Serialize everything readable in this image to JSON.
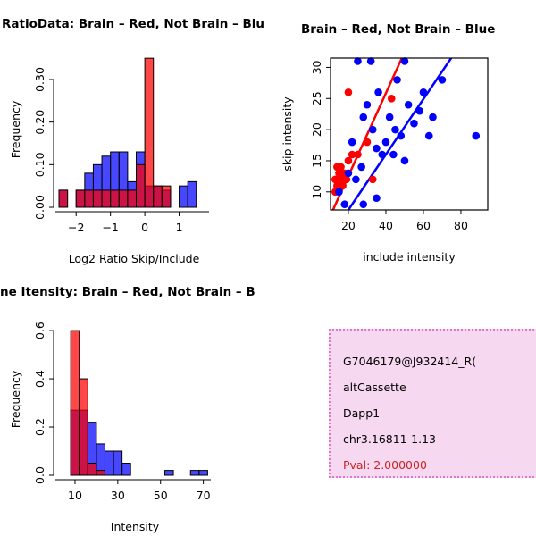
{
  "figure": {
    "background": "#FFFFFF",
    "accent_red": "#FF0000",
    "accent_blue": "#0000FF"
  },
  "chart_data": [
    {
      "type": "bar",
      "title": "RatioData: Brain – Red, Not Brain – Blu",
      "xlabel": "Log2 Ratio Skip/Include",
      "ylabel": "Frequency",
      "xlim": [
        -2.5,
        1.87
      ],
      "ylim": [
        0,
        0.365
      ],
      "xticks": [
        {
          "v": -2,
          "label": "−2"
        },
        {
          "v": -1,
          "label": "−1"
        },
        {
          "v": 0,
          "label": "0"
        },
        {
          "v": 1,
          "label": "1"
        }
      ],
      "yticks": [
        {
          "v": 0,
          "label": "0.00"
        },
        {
          "v": 0.1,
          "label": "0.10"
        },
        {
          "v": 0.2,
          "label": "0.20"
        },
        {
          "v": 0.3,
          "label": "0.30"
        }
      ],
      "bin_start": -2.5,
      "bin_width": 0.25,
      "series": [
        {
          "name": "not-brain",
          "color": "#0000FF",
          "values": [
            0.04,
            0,
            0.04,
            0.08,
            0.1,
            0.12,
            0.13,
            0.13,
            0.06,
            0.13,
            0.05,
            0.05,
            0.04,
            0,
            0.05,
            0.06
          ]
        },
        {
          "name": "brain",
          "color": "#FF0000",
          "values": [
            0.04,
            0,
            0.04,
            0.04,
            0.04,
            0.04,
            0.04,
            0.04,
            0.04,
            0.1,
            0.35,
            0.05,
            0.05,
            0,
            0,
            0
          ]
        }
      ]
    },
    {
      "type": "scatter",
      "title": "Brain – Red, Not Brain – Blue",
      "xlabel": "include intensity",
      "ylabel": "skip intensity",
      "xlim": [
        10.5,
        94.3
      ],
      "ylim": [
        7.1,
        31.5
      ],
      "xticks": [
        {
          "v": 20,
          "label": "20"
        },
        {
          "v": 40,
          "label": "40"
        },
        {
          "v": 60,
          "label": "60"
        },
        {
          "v": 80,
          "label": "80"
        }
      ],
      "yticks": [
        {
          "v": 10,
          "label": "10"
        },
        {
          "v": 15,
          "label": "15"
        },
        {
          "v": 20,
          "label": "20"
        },
        {
          "v": 25,
          "label": "25"
        },
        {
          "v": 30,
          "label": "30"
        }
      ],
      "series": [
        {
          "name": "brain",
          "color": "#FF0000",
          "points": [
            [
              13,
              12
            ],
            [
              14,
              11
            ],
            [
              15,
              13
            ],
            [
              16,
              12
            ],
            [
              14,
              14
            ],
            [
              17,
              11
            ],
            [
              13,
              10
            ],
            [
              18,
              13
            ],
            [
              16,
              14
            ],
            [
              19,
              12
            ],
            [
              20,
              15
            ],
            [
              22,
              16
            ],
            [
              25,
              16
            ],
            [
              30,
              18
            ],
            [
              33,
              12
            ],
            [
              20,
              26
            ],
            [
              43,
              25
            ]
          ]
        },
        {
          "name": "not-brain",
          "color": "#0000FF",
          "points": [
            [
              15,
              10
            ],
            [
              18,
              8
            ],
            [
              20,
              13
            ],
            [
              22,
              18
            ],
            [
              25,
              31
            ],
            [
              27,
              14
            ],
            [
              28,
              22
            ],
            [
              30,
              24
            ],
            [
              32,
              31
            ],
            [
              35,
              17
            ],
            [
              36,
              26
            ],
            [
              38,
              16
            ],
            [
              40,
              18
            ],
            [
              42,
              22
            ],
            [
              45,
              20
            ],
            [
              46,
              28
            ],
            [
              48,
              19
            ],
            [
              50,
              15
            ],
            [
              52,
              24
            ],
            [
              55,
              21
            ],
            [
              58,
              23
            ],
            [
              60,
              26
            ],
            [
              63,
              19
            ],
            [
              65,
              22
            ],
            [
              70,
              28
            ],
            [
              88,
              19
            ],
            [
              35,
              9
            ],
            [
              28,
              8
            ],
            [
              24,
              12
            ],
            [
              50,
              31
            ],
            [
              33,
              20
            ],
            [
              44,
              16
            ]
          ]
        }
      ],
      "fit_lines": [
        {
          "name": "brain-fit",
          "color": "#FF0000",
          "x1": 11.8,
          "y1": 7.1,
          "x2": 48.5,
          "y2": 31.5
        },
        {
          "name": "not-brain-fit",
          "color": "#0000FF",
          "x1": 20,
          "y1": 7.1,
          "x2": 74.8,
          "y2": 31.5
        }
      ]
    },
    {
      "type": "bar",
      "title": "ne Itensity: Brain – Red, Not Brain – B",
      "xlabel": "Intensity",
      "ylabel": "Frequency",
      "xlim": [
        2.5,
        73.5
      ],
      "ylim": [
        0,
        0.63
      ],
      "xticks": [
        {
          "v": 10,
          "label": "10"
        },
        {
          "v": 30,
          "label": "30"
        },
        {
          "v": 50,
          "label": "50"
        },
        {
          "v": 70,
          "label": "70"
        }
      ],
      "yticks": [
        {
          "v": 0,
          "label": "0.0"
        },
        {
          "v": 0.2,
          "label": "0.2"
        },
        {
          "v": 0.4,
          "label": "0.4"
        },
        {
          "v": 0.6,
          "label": "0.6"
        }
      ],
      "bin_start": 8,
      "bin_width": 4,
      "series": [
        {
          "name": "not-brain",
          "color": "#0000FF",
          "values": [
            0.27,
            0.27,
            0.22,
            0.13,
            0.1,
            0.1,
            0.05,
            0,
            0,
            0,
            0,
            0.02,
            0,
            0,
            0.02,
            0.02,
            0
          ]
        },
        {
          "name": "brain",
          "color": "#FF0000",
          "values": [
            0.6,
            0.4,
            0.05,
            0.02,
            0,
            0,
            0,
            0,
            0,
            0,
            0,
            0,
            0,
            0,
            0,
            0,
            0
          ]
        }
      ]
    }
  ],
  "info_box": {
    "background": "#F6D9F0",
    "border_color": "#DD77CC",
    "lines": [
      {
        "text": "G7046179@J932414_R(",
        "color": "#000000"
      },
      {
        "text": "altCassette",
        "color": "#000000"
      },
      {
        "text": "Dapp1",
        "color": "#000000"
      },
      {
        "text": "chr3.16811-1.13",
        "color": "#000000"
      },
      {
        "text": "Pval: 2.000000",
        "color": "#CC2222"
      }
    ]
  }
}
